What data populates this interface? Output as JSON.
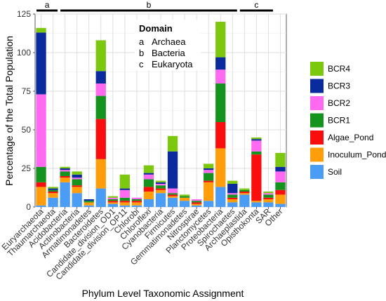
{
  "chart_data": {
    "type": "bar",
    "stacked": true,
    "xlabel": "Phylum Level Taxonomic Assignment",
    "ylabel": "Percentage of the Total Population",
    "ylim": [
      0,
      125
    ],
    "yticks": [
      0,
      25,
      50,
      75,
      100,
      125
    ],
    "grid": true,
    "legend_position": "right",
    "categories": [
      "Euryarchaeota",
      "Thaumarchaeota",
      "Acidobacteria",
      "Actinobacteria",
      "Armatimonadetes",
      "Bacteroidetes",
      "Candidate_division_OD1",
      "Candidate_division_OP11",
      "Chlorobi",
      "Chloroflexi",
      "Cyanobacteria",
      "Firmicutes",
      "Gemmatimonadetes",
      "Nitrospirae",
      "Planctomycetes",
      "Proteobacteria",
      "Spirochaetes",
      "Archaeplastida",
      "Opisthokonta",
      "SAR",
      "Other"
    ],
    "series": [
      {
        "name": "Soil",
        "color": "#4b9cf4",
        "values": [
          1,
          6,
          16,
          9,
          1,
          12,
          2,
          1,
          1,
          5,
          9,
          6,
          4,
          1,
          4,
          13,
          3,
          8,
          3,
          3,
          2
        ]
      },
      {
        "name": "Inoculum_Pond",
        "color": "#ff9d0a",
        "values": [
          12,
          3,
          3,
          4,
          2,
          19,
          1,
          2,
          2,
          5,
          2,
          1,
          2,
          1,
          12,
          25,
          2,
          1,
          1,
          2,
          6
        ]
      },
      {
        "name": "Algae_Pond",
        "color": "#f90d0d",
        "values": [
          3,
          1,
          1,
          1,
          0,
          26,
          1,
          1,
          1,
          3,
          1,
          1,
          0,
          1,
          1,
          17,
          1,
          1,
          30,
          1,
          3
        ]
      },
      {
        "name": "BCR1",
        "color": "#14941f",
        "values": [
          10,
          1,
          3,
          4,
          1,
          15,
          1,
          2,
          1,
          5,
          2,
          1,
          1,
          1,
          5,
          25,
          2,
          1,
          2,
          2,
          5
        ]
      },
      {
        "name": "BCR2",
        "color": "#ff6af0",
        "values": [
          47,
          0,
          1,
          1,
          0,
          8,
          1,
          5,
          1,
          3,
          1,
          3,
          0,
          1,
          2,
          9,
          1,
          0,
          7,
          1,
          7
        ]
      },
      {
        "name": "BCR3",
        "color": "#0a2b9d",
        "values": [
          40,
          1,
          1,
          2,
          1,
          8,
          0,
          1,
          0,
          1,
          1,
          24,
          0,
          0,
          1,
          8,
          6,
          0,
          1,
          0,
          3
        ]
      },
      {
        "name": "BCR4",
        "color": "#7cc80e",
        "values": [
          3,
          1,
          1,
          2,
          0,
          20,
          1,
          9,
          0,
          5,
          1,
          10,
          1,
          0,
          3,
          23,
          2,
          1,
          1,
          1,
          9
        ]
      }
    ],
    "domain_brackets": [
      {
        "label": "a",
        "from": 0,
        "to": 1
      },
      {
        "label": "b",
        "from": 2,
        "to": 16
      },
      {
        "label": "c",
        "from": 17,
        "to": 19
      }
    ],
    "domain_key": {
      "title": "Domain",
      "entries": [
        {
          "letter": "a",
          "name": "Archaea"
        },
        {
          "letter": "b",
          "name": "Bacteria"
        },
        {
          "letter": "c",
          "name": "Eukaryota"
        }
      ]
    },
    "legend_order": [
      "BCR4",
      "BCR3",
      "BCR2",
      "BCR1",
      "Algae_Pond",
      "Inoculum_Pond",
      "Soil"
    ]
  }
}
